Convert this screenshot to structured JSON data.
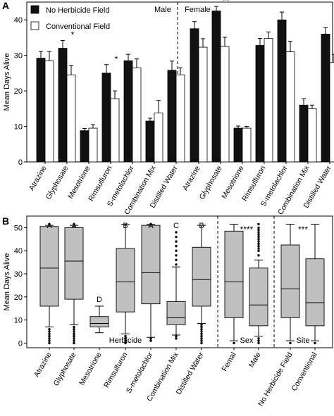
{
  "chart_data": [
    {
      "panel": "A",
      "type": "bar",
      "ylabel": "Mean Days Alive",
      "ylim": [
        0,
        45
      ],
      "yticks": [
        0,
        10,
        20,
        30,
        40
      ],
      "legend": [
        "No Herbicide Field",
        "Conventional Field"
      ],
      "legend_position": "top-left",
      "series_colors": [
        "#111111",
        "#ffffff"
      ],
      "groups": [
        {
          "name": "Male",
          "categories": [
            "Atrazine",
            "Glyphosate",
            "Mesotrione",
            "Rimsulfuron",
            "S-metolachlor",
            "Combination Mix",
            "Distilled Water"
          ],
          "series": [
            {
              "name": "No Herbicide Field",
              "values": [
                29.2,
                32.0,
                8.8,
                25.0,
                28.5,
                11.5,
                25.8
              ],
              "errors": [
                1.9,
                2.2,
                0.6,
                2.4,
                1.8,
                0.8,
                2.6
              ]
            },
            {
              "name": "Conventional Field",
              "values": [
                28.5,
                24.5,
                9.5,
                17.8,
                26.5,
                13.8,
                24.5
              ],
              "errors": [
                2.6,
                2.6,
                1.0,
                2.2,
                2.5,
                3.5,
                2.0
              ]
            }
          ],
          "significance": [
            {
              "category": "Glyphosate",
              "text": "*"
            },
            {
              "category": "Rimsulfuron",
              "text": "*"
            }
          ]
        },
        {
          "name": "Female",
          "categories": [
            "Atrazine",
            "Glyphosate",
            "Mesotrione",
            "Rimsulfuron",
            "S-metolachlor",
            "Combination Mix",
            "Distilled Water"
          ],
          "series": [
            {
              "name": "No Herbicide Field",
              "values": [
                37.5,
                42.5,
                9.5,
                32.8,
                40.0,
                16.0,
                36.0
              ],
              "errors": [
                2.0,
                1.3,
                0.6,
                2.0,
                2.2,
                1.8,
                1.8
              ]
            },
            {
              "name": "Conventional Field",
              "values": [
                32.3,
                32.5,
                9.5,
                34.8,
                31.0,
                15.0,
                28.0
              ],
              "errors": [
                2.4,
                2.6,
                0.5,
                1.8,
                3.0,
                1.0,
                2.3
              ]
            }
          ],
          "significance": [
            {
              "category": "Glyphosate",
              "text": "**"
            }
          ]
        }
      ]
    },
    {
      "panel": "B",
      "type": "box",
      "ylabel": "Mean Days Alive",
      "ylim": [
        -2,
        55
      ],
      "yticks": [
        0,
        10,
        20,
        30,
        40,
        50
      ],
      "sections": [
        {
          "label": "Herbicide",
          "significance": ""
        },
        {
          "label": "Sex",
          "significance": "****"
        },
        {
          "label": "Site",
          "significance": "***"
        }
      ],
      "categories": [
        "Atrazine",
        "Glyphosate",
        "Mesotrione",
        "Rimsulfuron",
        "S-metolachlor",
        "Combination Mix",
        "Distilled Water",
        "Femal",
        "Male",
        "No Herbicide Field",
        "Conventional"
      ],
      "boxes": [
        {
          "category": "Atrazine",
          "section": "Herbicide",
          "letter": "A",
          "whisker_low": 7,
          "q1": 16,
          "median": 32.5,
          "q3": 50.5,
          "whisker_high": 51,
          "outliers": [
            0,
            1,
            2,
            3,
            4,
            5,
            6,
            51.5
          ]
        },
        {
          "category": "Glyphosate",
          "section": "Herbicide",
          "letter": "A",
          "whisker_low": 8,
          "q1": 19,
          "median": 35.5,
          "q3": 50,
          "whisker_high": 51,
          "outliers": [
            0,
            1,
            2,
            3,
            4,
            5,
            6,
            7,
            51.5
          ]
        },
        {
          "category": "Mesotrione",
          "section": "Herbicide",
          "letter": "D",
          "whisker_low": 4.5,
          "q1": 7,
          "median": 8.5,
          "q3": 11.5,
          "whisker_high": 16,
          "outliers": []
        },
        {
          "category": "Rimsulfuron",
          "section": "Herbicide",
          "letter": "B",
          "whisker_low": 4,
          "q1": 13.5,
          "median": 26.5,
          "q3": 41,
          "whisker_high": 51.5,
          "outliers": [
            0,
            1,
            2,
            3
          ]
        },
        {
          "category": "S-metolachlor",
          "section": "Herbicide",
          "letter": "A",
          "whisker_low": 2.5,
          "q1": 17,
          "median": 30.5,
          "q3": 51,
          "whisker_high": 51.5,
          "outliers": [
            1,
            2,
            51.5
          ]
        },
        {
          "category": "Combination Mix",
          "section": "Herbicide",
          "letter": "C",
          "whisker_low": 3.5,
          "q1": 8,
          "median": 11,
          "q3": 18,
          "whisker_high": 33,
          "outliers": [
            34,
            36,
            38,
            40,
            42,
            44,
            46,
            48,
            2,
            3
          ]
        },
        {
          "category": "Distilled Water",
          "section": "Herbicide",
          "letter": "B",
          "whisker_low": 8.5,
          "q1": 16,
          "median": 27.5,
          "q3": 41.5,
          "whisker_high": 51,
          "outliers": [
            0,
            1,
            2,
            3,
            4,
            5,
            6,
            7,
            8
          ]
        },
        {
          "category": "Femal",
          "section": "Sex",
          "letter": "",
          "whisker_low": 1,
          "q1": 11,
          "median": 26.5,
          "q3": 48.5,
          "whisker_high": 51.5,
          "outliers": [
            0
          ]
        },
        {
          "category": "Male",
          "section": "Sex",
          "letter": "",
          "whisker_low": 3,
          "q1": 7.5,
          "median": 16.5,
          "q3": 32.5,
          "whisker_high": 36,
          "outliers": [
            38,
            40,
            41,
            42,
            43,
            44,
            45,
            46,
            47,
            48,
            49,
            50,
            51.5,
            0,
            1,
            2
          ]
        },
        {
          "category": "No Herbicide Field",
          "section": "Site",
          "letter": "",
          "whisker_low": 1,
          "q1": 11,
          "median": 23.5,
          "q3": 42.5,
          "whisker_high": 51.5,
          "outliers": [
            0
          ]
        },
        {
          "category": "Conventional",
          "section": "Site",
          "letter": "",
          "whisker_low": 1,
          "q1": 7.5,
          "median": 17.5,
          "q3": 36.5,
          "whisker_high": 51.5,
          "outliers": [
            0
          ]
        }
      ]
    }
  ],
  "panel_labels": [
    "A",
    "B"
  ]
}
